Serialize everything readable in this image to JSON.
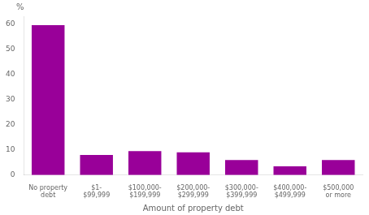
{
  "chart_data": {
    "type": "bar",
    "categories": [
      "No property\ndebt",
      "$1-\n$99,999",
      "$100,000-\n$199,999",
      "$200,000-\n$299,999",
      "$300,000-\n$399,999",
      "$400,000-\n$499,999",
      "$500,000\nor more"
    ],
    "values": [
      59.5,
      8.0,
      9.5,
      9.0,
      6.0,
      3.5,
      6.0
    ],
    "color": "#990099",
    "xlabel": "Amount of property debt",
    "ylabel": "%",
    "ylim": [
      0,
      63
    ],
    "yticks": [
      0,
      10,
      20,
      30,
      40,
      50,
      60
    ],
    "grid": false
  }
}
